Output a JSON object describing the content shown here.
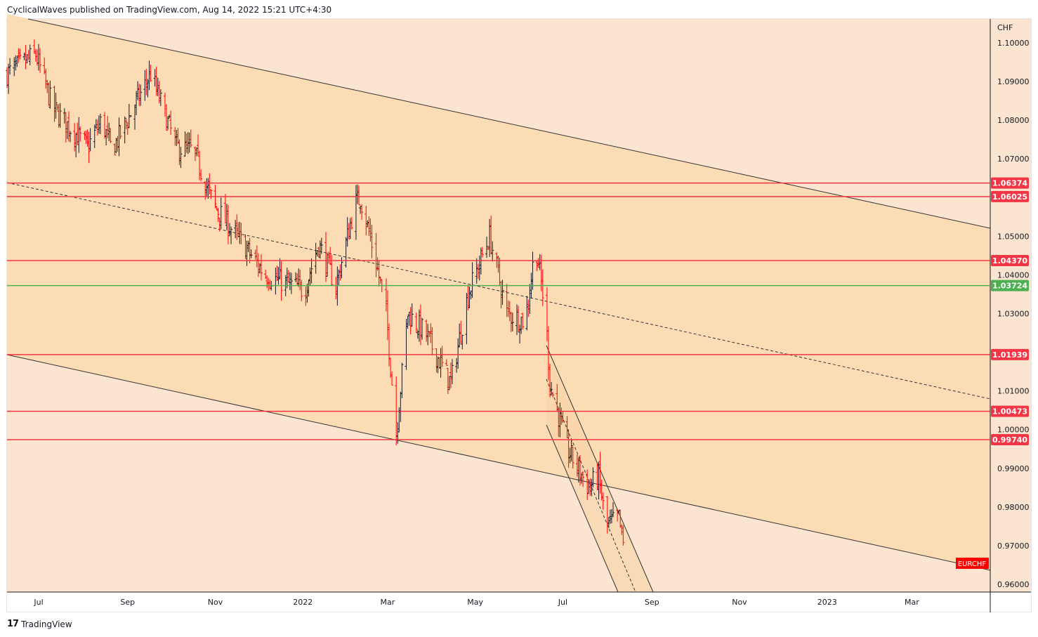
{
  "header": {
    "text": "CyclicalWaves published on TradingView.com, Aug 14, 2022 15:21 UTC+4:30"
  },
  "footer": {
    "brand": "TradingView",
    "logo_text": "17"
  },
  "chart_data": {
    "type": "ohlc",
    "symbol": "EURCHF",
    "currency": "CHF",
    "ylim": [
      0.955,
      1.105
    ],
    "y_ticks": [
      "1.10000",
      "1.09000",
      "1.08000",
      "1.07000",
      "1.05000",
      "1.04000",
      "1.03000",
      "1.01000",
      "1.00000",
      "0.99000",
      "0.98000",
      "0.97000",
      "0.96000"
    ],
    "x_ticks": [
      {
        "label": "Jul",
        "date": "2021-07-01"
      },
      {
        "label": "Sep",
        "date": "2021-09-01"
      },
      {
        "label": "Nov",
        "date": "2021-11-01"
      },
      {
        "label": "2022",
        "date": "2022-01-01"
      },
      {
        "label": "Mar",
        "date": "2022-03-01"
      },
      {
        "label": "May",
        "date": "2022-05-01"
      },
      {
        "label": "Jul",
        "date": "2022-07-01"
      },
      {
        "label": "Sep",
        "date": "2022-09-01"
      },
      {
        "label": "Nov",
        "date": "2022-11-01"
      },
      {
        "label": "2023",
        "date": "2023-01-01"
      },
      {
        "label": "Mar",
        "date": "2023-03-01"
      }
    ],
    "price_path": [
      [
        "2021-06-09",
        1.092
      ],
      [
        "2021-06-29",
        1.097
      ],
      [
        "2021-07-11",
        1.083
      ],
      [
        "2021-08-04",
        1.073
      ],
      [
        "2021-08-14",
        1.08
      ],
      [
        "2021-08-21",
        1.072
      ],
      [
        "2021-09-17",
        1.092
      ],
      [
        "2021-10-05",
        1.073
      ],
      [
        "2021-10-17",
        1.072
      ],
      [
        "2021-10-31",
        1.058
      ],
      [
        "2021-11-20",
        1.048
      ],
      [
        "2021-12-06",
        1.04
      ],
      [
        "2022-01-02",
        1.036
      ],
      [
        "2022-01-12",
        1.048
      ],
      [
        "2022-01-24",
        1.037
      ],
      [
        "2022-02-06",
        1.058
      ],
      [
        "2022-02-10",
        1.06
      ],
      [
        "2022-02-20",
        1.045
      ],
      [
        "2022-02-28",
        1.03
      ],
      [
        "2022-03-07",
        0.999
      ],
      [
        "2022-03-15",
        1.03
      ],
      [
        "2022-03-27",
        1.025
      ],
      [
        "2022-04-14",
        1.012
      ],
      [
        "2022-04-26",
        1.035
      ],
      [
        "2022-05-11",
        1.05
      ],
      [
        "2022-05-23",
        1.03
      ],
      [
        "2022-06-05",
        1.028
      ],
      [
        "2022-06-12",
        1.048
      ],
      [
        "2022-06-19",
        1.03
      ],
      [
        "2022-06-22",
        1.012
      ],
      [
        "2022-07-04",
        0.995
      ],
      [
        "2022-07-19",
        0.985
      ],
      [
        "2022-07-26",
        0.988
      ],
      [
        "2022-07-31",
        0.975
      ],
      [
        "2022-08-09",
        0.977
      ],
      [
        "2022-08-12",
        0.97
      ]
    ],
    "levels": [
      {
        "price": 1.06374,
        "label": "1.06374",
        "color": "#f23645"
      },
      {
        "price": 1.06025,
        "label": "1.06025",
        "color": "#f23645"
      },
      {
        "price": 1.0437,
        "label": "1.04370",
        "color": "#f23645"
      },
      {
        "price": 1.03724,
        "label": "1.03724",
        "color": "#4caf50"
      },
      {
        "price": 1.01939,
        "label": "1.01939",
        "color": "#f23645"
      },
      {
        "price": 1.00473,
        "label": "1.00473",
        "color": "#f23645"
      },
      {
        "price": 0.9974,
        "label": "0.99740",
        "color": "#f23645"
      }
    ],
    "symbol_label": "EURCHF",
    "colors": {
      "up": "#131722",
      "down": "#ff0000",
      "bg": "#fbe5d0",
      "channel": "#fbdcb5"
    }
  }
}
